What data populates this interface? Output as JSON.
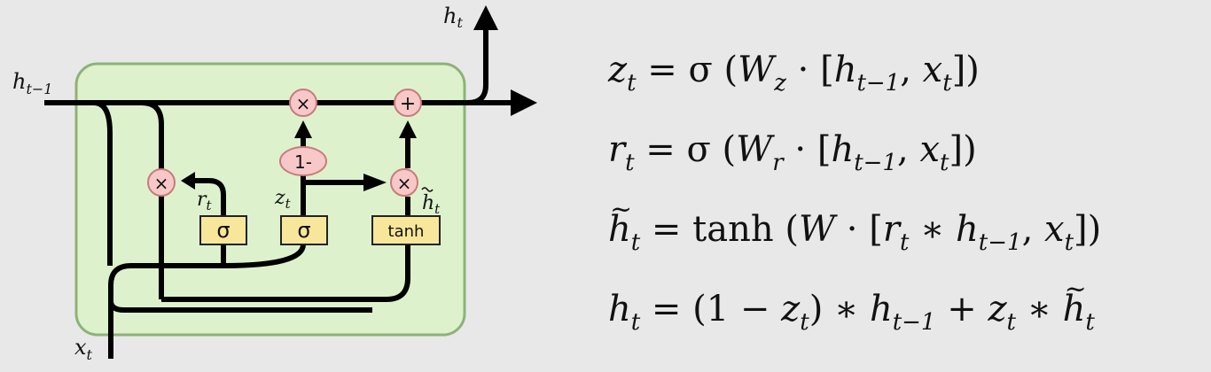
{
  "diagram": {
    "labels": {
      "h_out": {
        "base": "h",
        "sub": "t"
      },
      "h_prev": {
        "base": "h",
        "sub": "t−1"
      },
      "x_in": {
        "base": "x",
        "sub": "t"
      },
      "r": {
        "base": "r",
        "sub": "t"
      },
      "z": {
        "base": "z",
        "sub": "t"
      },
      "htilde": {
        "base": "h",
        "sub": "t"
      }
    },
    "ops": {
      "multiply": "×",
      "add": "+",
      "one_minus": "1-"
    },
    "gates": {
      "sigma": "σ",
      "tanh": "tanh"
    }
  },
  "equations": {
    "eq1": [
      "z",
      "t",
      " = σ (",
      "W",
      "z",
      " · [",
      "h",
      "t−1",
      ", ",
      "x",
      "t",
      "])"
    ],
    "eq2": [
      "r",
      "t",
      " = σ (",
      "W",
      "r",
      " · [",
      "h",
      "t−1",
      ", ",
      "x",
      "t",
      "])"
    ],
    "eq3": [
      "h",
      "t",
      " = tanh (",
      "W",
      " · [",
      "r",
      "t",
      " ∗ ",
      "h",
      "t−1",
      ", ",
      "x",
      "t",
      "])"
    ],
    "eq4": [
      "h",
      "t",
      " = (1 − ",
      "z",
      "t",
      ") ∗ ",
      "h",
      "t−1",
      " + ",
      "z",
      "t",
      " ∗ ",
      "h",
      "t"
    ]
  },
  "colors": {
    "cell_fill": "#ddf2cc",
    "cell_border": "#8db27a",
    "op_fill": "#f8c8c8",
    "op_stroke": "#c77b7b",
    "gate_fill": "#f8e79a",
    "gate_stroke": "#222222",
    "line": "#000000"
  }
}
